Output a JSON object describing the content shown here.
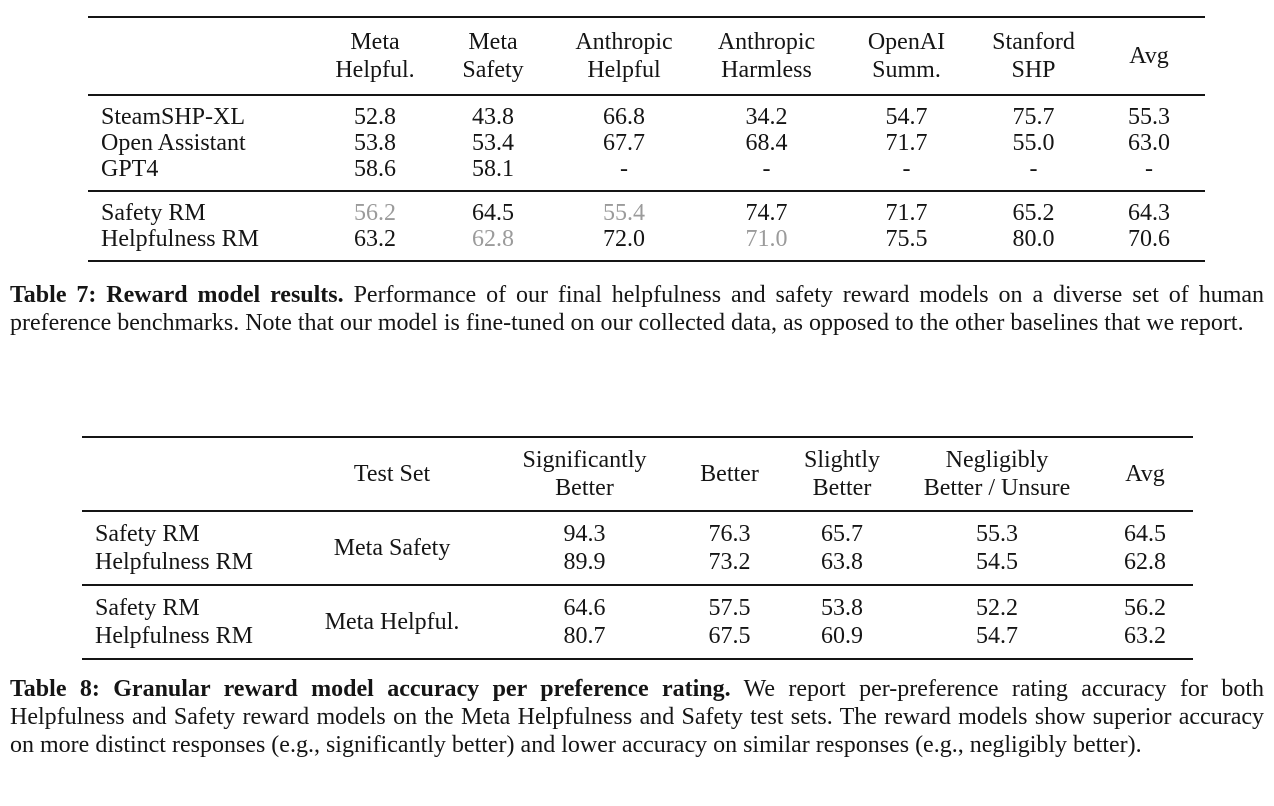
{
  "page": {
    "background": "#ffffff"
  },
  "colors": {
    "text": "#151515",
    "rule": "#151515",
    "muted": "#9b9b9b"
  },
  "table7": {
    "headers": [
      "",
      "Meta\nHelpful.",
      "Meta\nSafety",
      "Anthropic\nHelpful",
      "Anthropic\nHarmless",
      "OpenAI\nSumm.",
      "Stanford\nSHP",
      "Avg"
    ],
    "baseline_rows": [
      {
        "label": "SteamSHP-XL",
        "values": [
          {
            "v": "52.8"
          },
          {
            "v": "43.8"
          },
          {
            "v": "66.8"
          },
          {
            "v": "34.2"
          },
          {
            "v": "54.7"
          },
          {
            "v": "75.7"
          },
          {
            "v": "55.3"
          }
        ]
      },
      {
        "label": "Open Assistant",
        "values": [
          {
            "v": "53.8"
          },
          {
            "v": "53.4"
          },
          {
            "v": "67.7"
          },
          {
            "v": "68.4"
          },
          {
            "v": "71.7"
          },
          {
            "v": "55.0"
          },
          {
            "v": "63.0"
          }
        ]
      },
      {
        "label": "GPT4",
        "values": [
          {
            "v": "58.6"
          },
          {
            "v": "58.1"
          },
          {
            "v": "-"
          },
          {
            "v": "-"
          },
          {
            "v": "-"
          },
          {
            "v": "-"
          },
          {
            "v": "-"
          }
        ]
      }
    ],
    "our_rows": [
      {
        "label": "Safety RM",
        "values": [
          {
            "v": "56.2",
            "m": true
          },
          {
            "v": "64.5"
          },
          {
            "v": "55.4",
            "m": true
          },
          {
            "v": "74.7"
          },
          {
            "v": "71.7"
          },
          {
            "v": "65.2"
          },
          {
            "v": "64.3"
          }
        ]
      },
      {
        "label": "Helpfulness RM",
        "values": [
          {
            "v": "63.2"
          },
          {
            "v": "62.8",
            "m": true
          },
          {
            "v": "72.0"
          },
          {
            "v": "71.0",
            "m": true
          },
          {
            "v": "75.5"
          },
          {
            "v": "80.0"
          },
          {
            "v": "70.6"
          }
        ]
      }
    ],
    "caption": {
      "bold": "Table 7: Reward model results.",
      "text": "Performance of our final helpfulness and safety reward models on a diverse set of human preference benchmarks. Note that our model is fine-tuned on our collected data, as opposed to the other baselines that we report."
    }
  },
  "table8": {
    "headers": [
      "",
      "Test Set",
      "Significantly\nBetter",
      "Better",
      "Slightly\nBetter",
      "Negligibly\nBetter / Unsure",
      "Avg"
    ],
    "groups": [
      {
        "test_set": "Meta Safety",
        "rows": [
          {
            "label": "Safety RM",
            "values": [
              "94.3",
              "76.3",
              "65.7",
              "55.3",
              "64.5"
            ]
          },
          {
            "label": "Helpfulness RM",
            "values": [
              "89.9",
              "73.2",
              "63.8",
              "54.5",
              "62.8"
            ]
          }
        ]
      },
      {
        "test_set": "Meta Helpful.",
        "rows": [
          {
            "label": "Safety RM",
            "values": [
              "64.6",
              "57.5",
              "53.8",
              "52.2",
              "56.2"
            ]
          },
          {
            "label": "Helpfulness RM",
            "values": [
              "80.7",
              "67.5",
              "60.9",
              "54.7",
              "63.2"
            ]
          }
        ]
      }
    ],
    "caption": {
      "bold": "Table 8: Granular reward model accuracy per preference rating.",
      "text": "We report per-preference rating accuracy for both Helpfulness and Safety reward models on the Meta Helpfulness and Safety test sets. The reward models show superior accuracy on more distinct responses (e.g., significantly better) and lower accuracy on similar responses (e.g., negligibly better)."
    }
  }
}
